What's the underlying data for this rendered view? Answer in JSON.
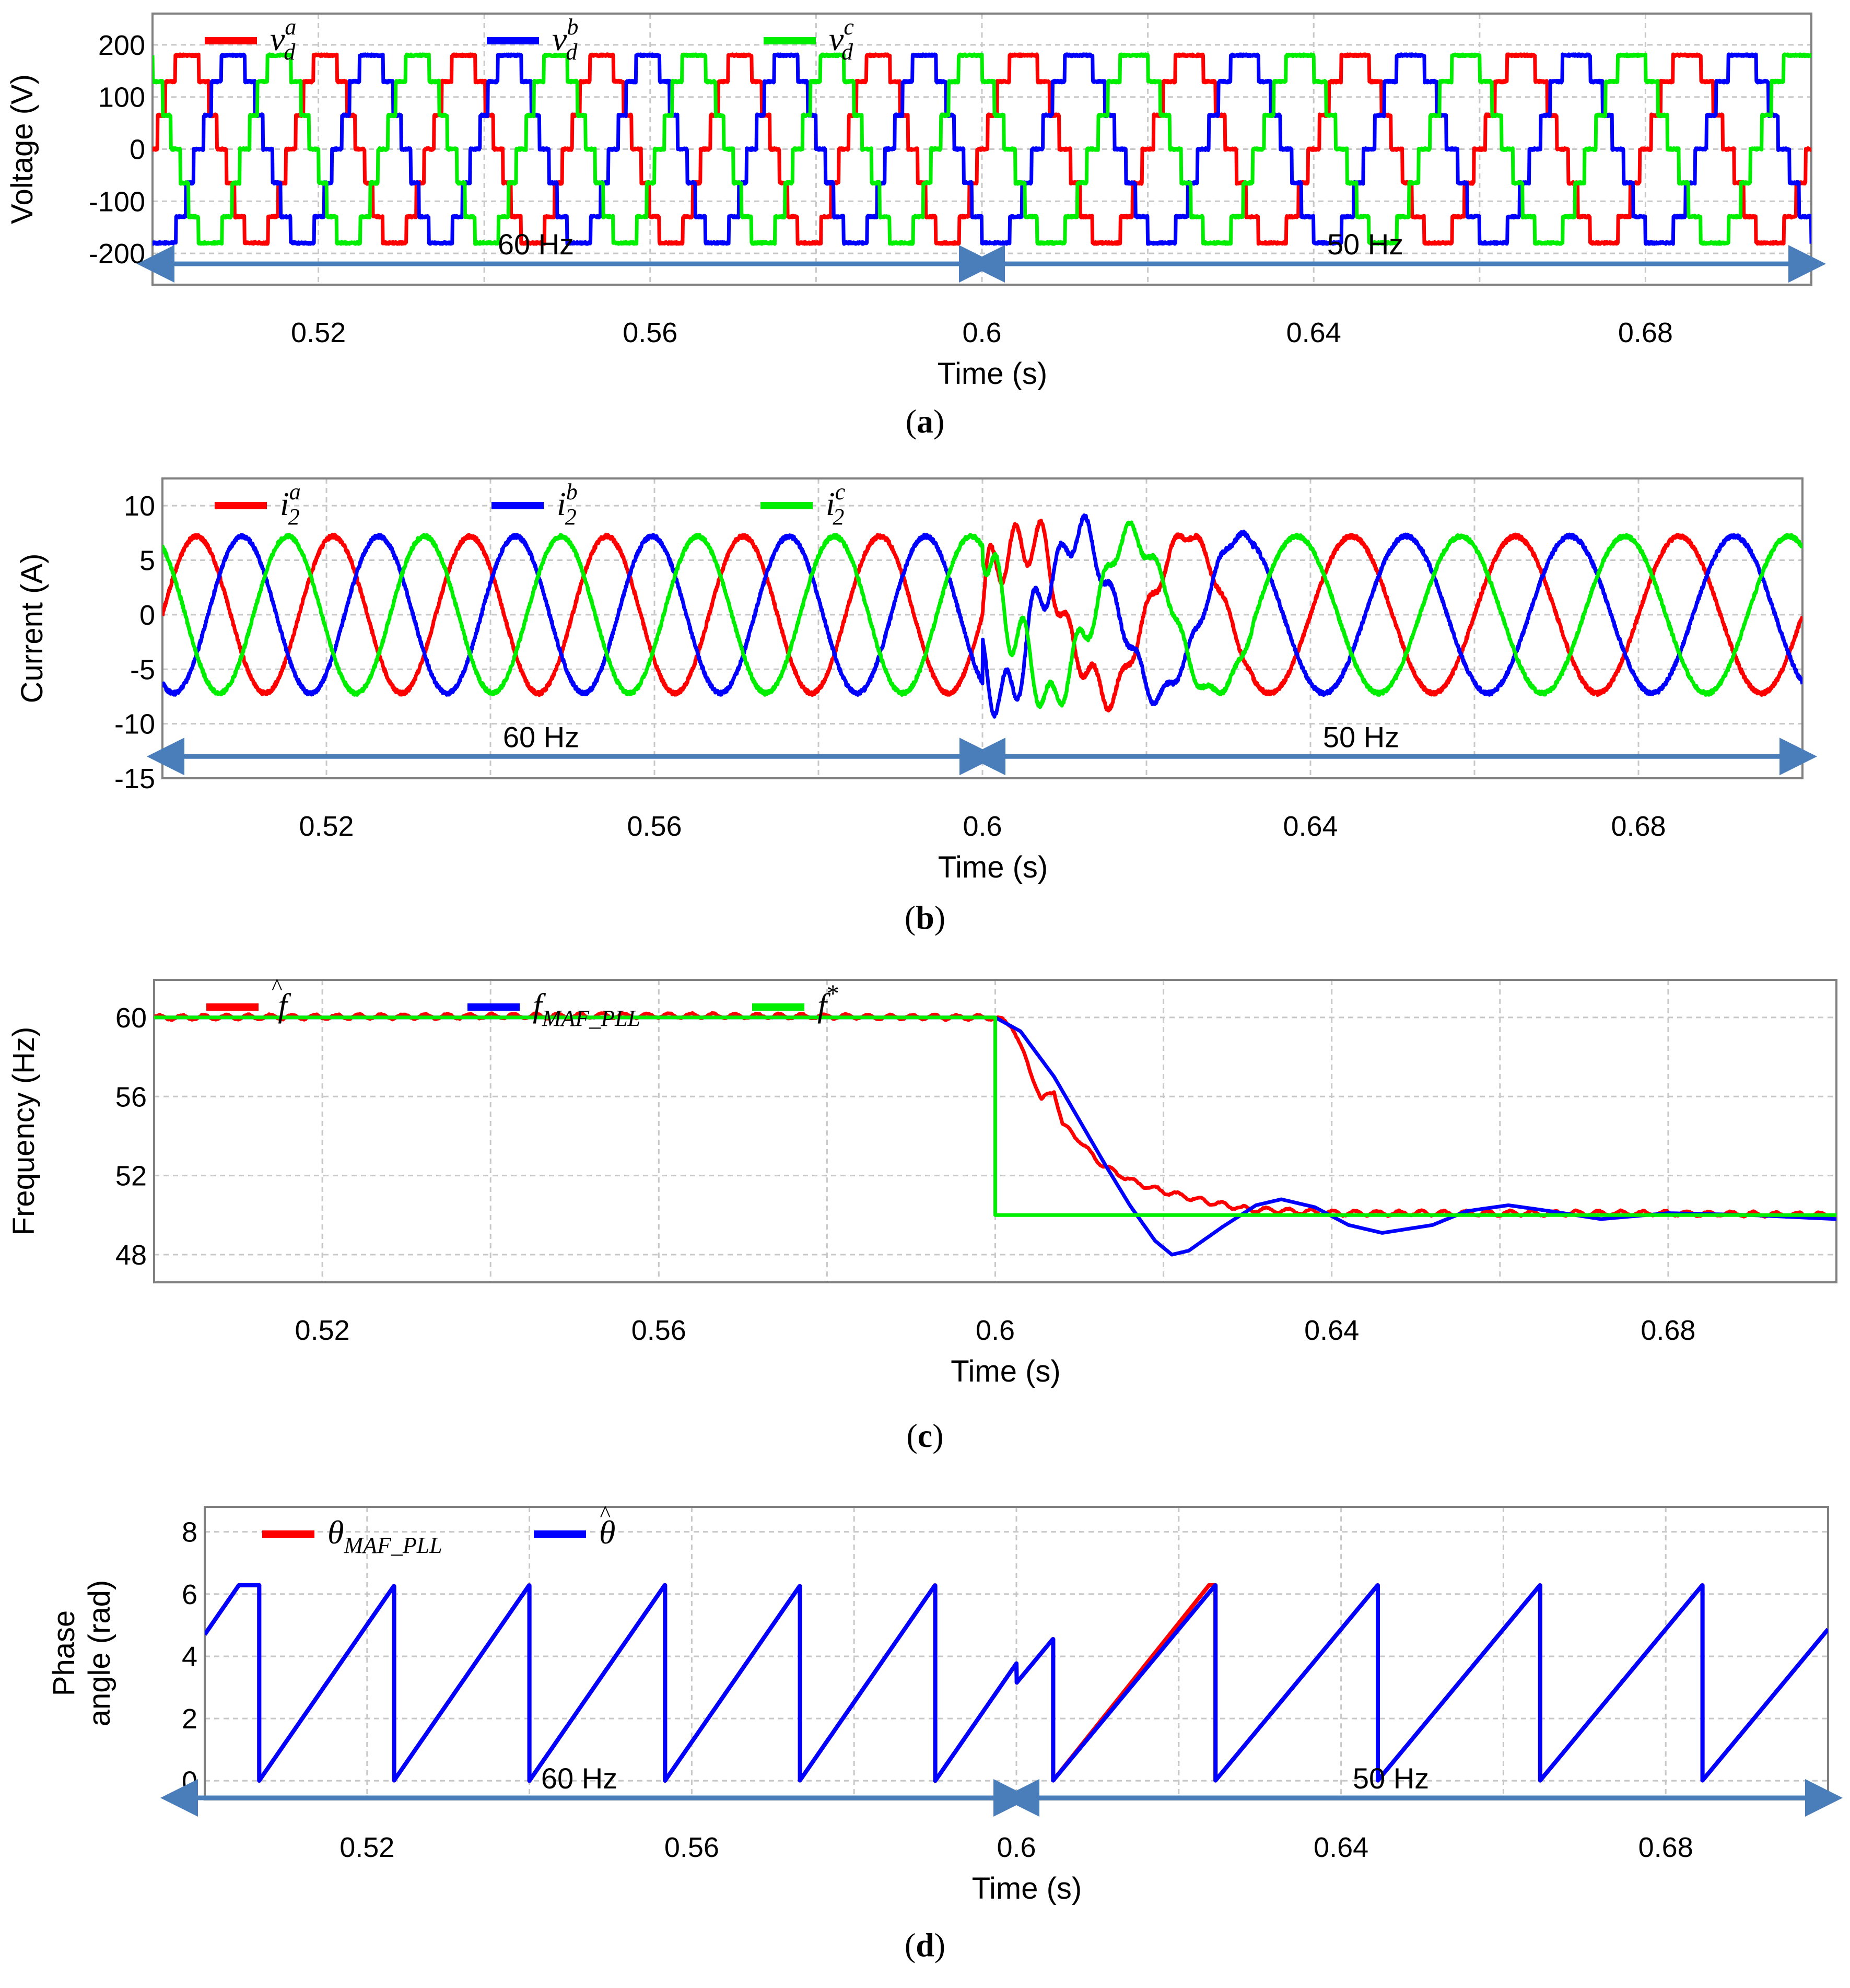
{
  "figure": {
    "colors": {
      "red": "#ff0000",
      "blue": "#0000ff",
      "green": "#00ee00",
      "arrow": "#4a7ebb",
      "grid": "#bbbbbb"
    }
  },
  "chart_data": [
    {
      "id": "a",
      "type": "line",
      "caption_letter": "a",
      "caption_open": "(",
      "caption_close": ")",
      "ylabel": "Voltage (V)",
      "xlabel": "Time (s)",
      "xlim": [
        0.5,
        0.7
      ],
      "ylim": [
        -260,
        260
      ],
      "yticks": [
        "200",
        "100",
        "0",
        "-100",
        "-200"
      ],
      "ytick_values": [
        200,
        100,
        0,
        -100,
        -200
      ],
      "xticks": [
        "0.52",
        "0.56",
        "0.6",
        "0.64",
        "0.68"
      ],
      "xtick_values": [
        0.52,
        0.56,
        0.6,
        0.64,
        0.68
      ],
      "legend": [
        {
          "base": "v",
          "sub": "d",
          "sup": "a",
          "color": "#ff0000"
        },
        {
          "base": "v",
          "sub": "d",
          "sup": "b",
          "color": "#0000ff"
        },
        {
          "base": "v",
          "sub": "d",
          "sup": "c",
          "color": "#00ee00"
        }
      ],
      "series": [
        {
          "name": "v_d^a",
          "color": "#ff0000",
          "waveform": "multilevel",
          "amplitude": 180,
          "phase_deg": 0
        },
        {
          "name": "v_d^b",
          "color": "#0000ff",
          "waveform": "multilevel",
          "amplitude": 180,
          "phase_deg": -120
        },
        {
          "name": "v_d^c",
          "color": "#00ee00",
          "waveform": "multilevel",
          "amplitude": 180,
          "phase_deg": 120
        }
      ],
      "frequency_segments": [
        {
          "from": 0.5,
          "to": 0.6,
          "freq": 60
        },
        {
          "from": 0.6,
          "to": 0.7,
          "freq": 50
        }
      ],
      "annotations": [
        {
          "text": "60 Hz",
          "from": 0.5,
          "to": 0.6
        },
        {
          "text": "50 Hz",
          "from": 0.6,
          "to": 0.7
        }
      ],
      "arrow_y": -220
    },
    {
      "id": "b",
      "type": "line",
      "caption_letter": "b",
      "caption_open": "(",
      "caption_close": ")",
      "ylabel": "Current (A)",
      "xlabel": "Time (s)",
      "xlim": [
        0.5,
        0.7
      ],
      "ylim": [
        -15,
        12.5
      ],
      "yticks": [
        "10",
        "5",
        "0",
        "-5",
        "-10",
        "-15"
      ],
      "ytick_values": [
        10,
        5,
        0,
        -5,
        -10,
        -15
      ],
      "xticks": [
        "0.52",
        "0.56",
        "0.6",
        "0.64",
        "0.68"
      ],
      "xtick_values": [
        0.52,
        0.56,
        0.6,
        0.64,
        0.68
      ],
      "legend": [
        {
          "base": "i",
          "sub": "2",
          "sup": "a",
          "color": "#ff0000"
        },
        {
          "base": "i",
          "sub": "2",
          "sup": "b",
          "color": "#0000ff"
        },
        {
          "base": "i",
          "sub": "2",
          "sup": "c",
          "color": "#00ee00"
        }
      ],
      "series": [
        {
          "name": "i_2^a",
          "color": "#ff0000",
          "waveform": "sine",
          "amplitude": 7.2,
          "phase_deg": 0
        },
        {
          "name": "i_2^b",
          "color": "#0000ff",
          "waveform": "sine",
          "amplitude": 7.2,
          "phase_deg": -120
        },
        {
          "name": "i_2^c",
          "color": "#00ee00",
          "waveform": "sine",
          "amplitude": 7.2,
          "phase_deg": 120
        }
      ],
      "frequency_segments": [
        {
          "from": 0.5,
          "to": 0.6,
          "freq": 60
        },
        {
          "from": 0.6,
          "to": 0.7,
          "freq": 50
        }
      ],
      "transient": {
        "from": 0.6,
        "to": 0.633,
        "max_deviation": 10
      },
      "annotations": [
        {
          "text": "60 Hz",
          "from": 0.5,
          "to": 0.6
        },
        {
          "text": "50 Hz",
          "from": 0.6,
          "to": 0.7
        }
      ],
      "arrow_y": -13
    },
    {
      "id": "c",
      "type": "line",
      "caption_letter": "c",
      "caption_open": "(",
      "caption_close": ")",
      "ylabel": "Frequency (Hz)",
      "xlabel": "Time (s)",
      "xlim": [
        0.5,
        0.7
      ],
      "ylim": [
        46.6,
        61.9
      ],
      "yticks": [
        "60",
        "56",
        "52",
        "48"
      ],
      "ytick_values": [
        60,
        56,
        52,
        48
      ],
      "xticks": [
        "0.52",
        "0.56",
        "0.6",
        "0.64",
        "0.68"
      ],
      "xtick_values": [
        0.52,
        0.56,
        0.6,
        0.64,
        0.68
      ],
      "legend": [
        {
          "base": "f",
          "hat": true,
          "color": "#ff0000"
        },
        {
          "base": "f",
          "sub": "MAF_PLL",
          "color": "#0000ff"
        },
        {
          "base": "f",
          "sup": "*",
          "color": "#00ee00"
        }
      ],
      "series": [
        {
          "name": "f_hat",
          "color": "#ff0000",
          "x": [
            0.5,
            0.56,
            0.6,
            0.602,
            0.604,
            0.6055,
            0.607,
            0.608,
            0.61,
            0.612,
            0.614,
            0.617,
            0.62,
            0.625,
            0.63,
            0.64,
            0.66,
            0.68,
            0.7
          ],
          "y": [
            60,
            60.1,
            60,
            59.6,
            57.5,
            55.8,
            56.3,
            54.6,
            53.8,
            52.8,
            52.2,
            51.6,
            51.2,
            50.7,
            50.3,
            50.1,
            50.1,
            50.1,
            50.0
          ]
        },
        {
          "name": "f_MAF_PLL",
          "color": "#0000ff",
          "x": [
            0.5,
            0.6,
            0.603,
            0.607,
            0.61,
            0.613,
            0.616,
            0.619,
            0.621,
            0.623,
            0.627,
            0.631,
            0.634,
            0.638,
            0.642,
            0.646,
            0.652,
            0.656,
            0.661,
            0.666,
            0.672,
            0.68,
            0.69,
            0.7
          ],
          "y": [
            60,
            60,
            59.3,
            57.0,
            54.8,
            52.6,
            50.5,
            48.7,
            48.0,
            48.2,
            49.4,
            50.5,
            50.8,
            50.4,
            49.5,
            49.1,
            49.5,
            50.2,
            50.5,
            50.2,
            49.8,
            50.1,
            50.0,
            49.8
          ]
        },
        {
          "name": "f_star",
          "color": "#00ee00",
          "x": [
            0.5,
            0.6,
            0.6,
            0.7
          ],
          "y": [
            60,
            60,
            50,
            50
          ]
        }
      ]
    },
    {
      "id": "d",
      "type": "line",
      "caption_letter": "d",
      "caption_open": "(",
      "caption_close": ")",
      "ylabel": [
        "Phase",
        "angle (rad)"
      ],
      "xlabel": "Time (s)",
      "xlim": [
        0.5,
        0.7
      ],
      "ylim": [
        -0.6,
        8.8
      ],
      "yticks": [
        "8",
        "6",
        "4",
        "2",
        "0"
      ],
      "ytick_values": [
        8,
        6,
        4,
        2,
        0
      ],
      "xticks": [
        "0.52",
        "0.56",
        "0.6",
        "0.64",
        "0.68"
      ],
      "xtick_values": [
        0.52,
        0.56,
        0.6,
        0.64,
        0.68
      ],
      "legend": [
        {
          "base": "θ",
          "sub": "MAF_PLL",
          "color": "#ff0000"
        },
        {
          "base": "θ",
          "hat": true,
          "color": "#0000ff"
        }
      ],
      "series": [
        {
          "name": "theta_MAF_PLL",
          "color": "#ff0000",
          "waveform": "sawtooth",
          "max": 6.283
        },
        {
          "name": "theta_hat",
          "color": "#0000ff",
          "waveform": "sawtooth",
          "max": 6.283
        }
      ],
      "wrap_times": [
        0.5067,
        0.5233,
        0.54,
        0.5567,
        0.5733,
        0.59,
        0.6045,
        0.6245,
        0.6445,
        0.6645,
        0.6845
      ],
      "initial_value": 4.7,
      "frequency_segments": [
        {
          "from": 0.5,
          "to": 0.6,
          "freq": 60
        },
        {
          "from": 0.6,
          "to": 0.7,
          "freq": 50
        }
      ],
      "annotations": [
        {
          "text": "60 Hz",
          "from": 0.5,
          "to": 0.6
        },
        {
          "text": "50 Hz",
          "from": 0.6,
          "to": 0.7
        }
      ],
      "arrow_y": -0.55
    }
  ]
}
